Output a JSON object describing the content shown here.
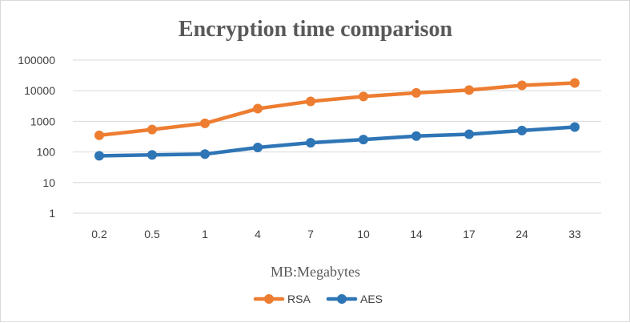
{
  "chart_data": {
    "type": "line",
    "title": "Encryption time comparison",
    "xlabel": "MB:Megabytes",
    "ylabel": "",
    "y_scale": "log",
    "ylim": [
      1,
      100000
    ],
    "y_ticks": [
      "1",
      "10",
      "100",
      "1000",
      "10000",
      "100000"
    ],
    "categories": [
      "0.2",
      "0.5",
      "1",
      "4",
      "7",
      "10",
      "14",
      "17",
      "24",
      "33"
    ],
    "grid": true,
    "legend_position": "bottom",
    "series": [
      {
        "name": "RSA",
        "color": "#ED7D31",
        "values": [
          350,
          540,
          860,
          2600,
          4500,
          6500,
          8500,
          10500,
          15000,
          18000
        ]
      },
      {
        "name": "AES",
        "color": "#2E75B6",
        "values": [
          75,
          80,
          85,
          140,
          200,
          255,
          330,
          380,
          500,
          650
        ]
      }
    ]
  }
}
